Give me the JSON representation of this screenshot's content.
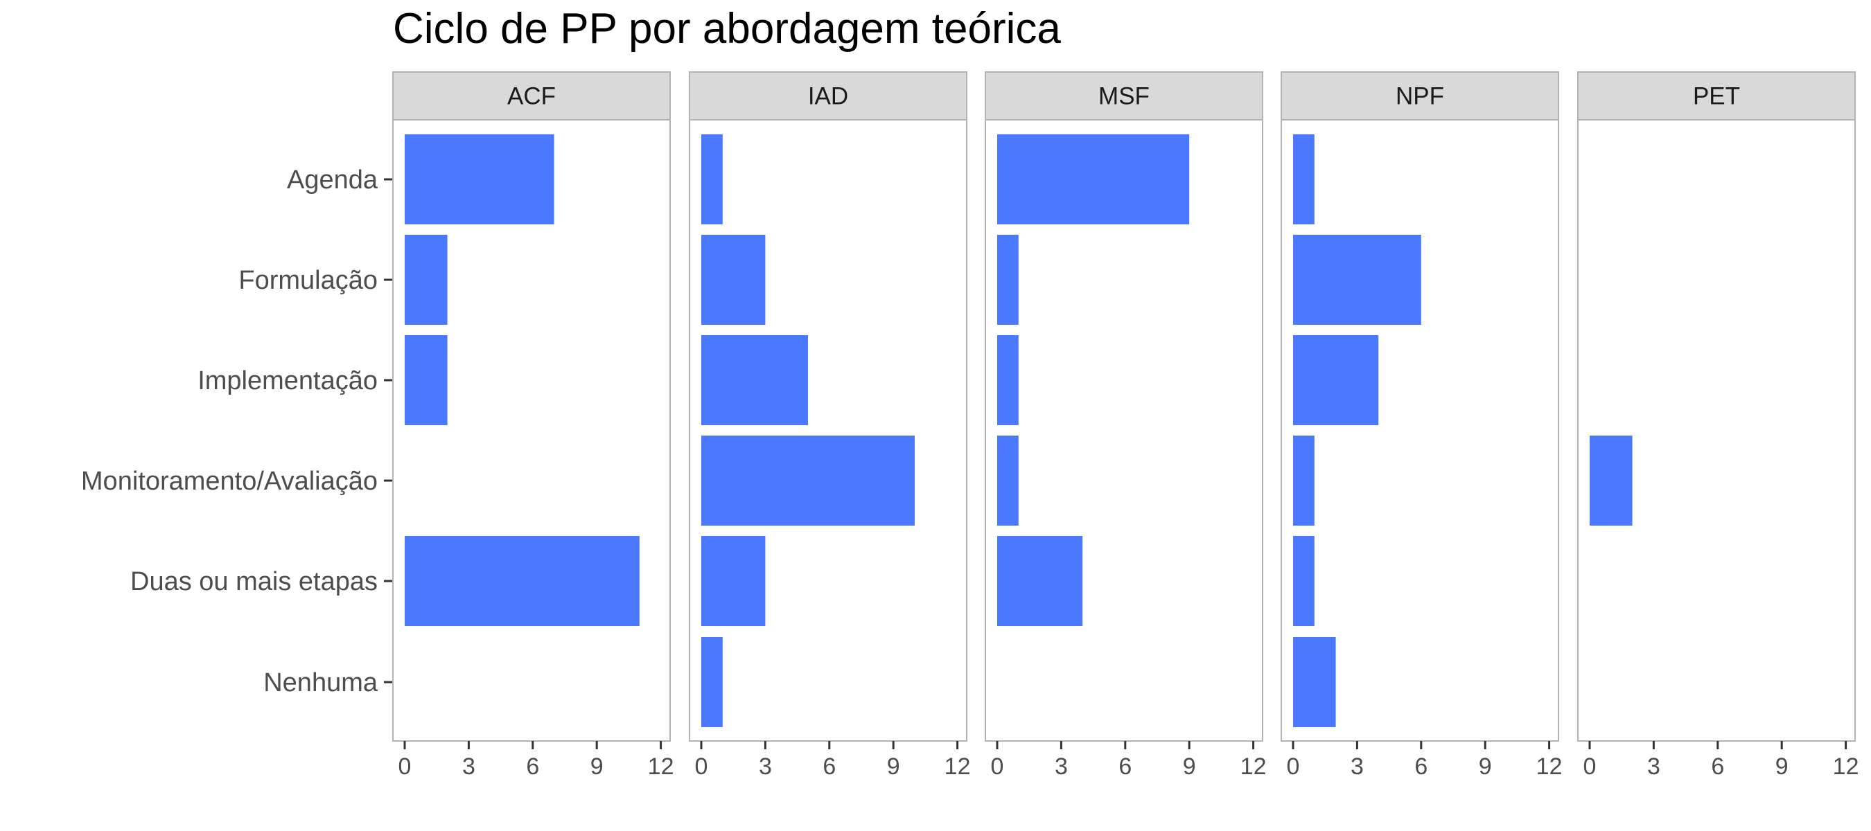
{
  "chart_data": {
    "type": "bar",
    "orientation": "horizontal",
    "faceted": true,
    "title": "Ciclo de PP por abordagem teórica",
    "xlabel": "",
    "ylabel": "",
    "xlim": [
      0,
      12
    ],
    "x_ticks": [
      "0",
      "3",
      "6",
      "9",
      "12"
    ],
    "categories": [
      "Agenda",
      "Formulação",
      "Implementação",
      "Monitoramento/Avaliação",
      "Duas ou mais etapas",
      "Nenhuma"
    ],
    "bar_color": "#4a78ff",
    "grid": false,
    "facets": [
      {
        "name": "ACF",
        "values": [
          7,
          2,
          2,
          0,
          11,
          0
        ]
      },
      {
        "name": "IAD",
        "values": [
          1,
          3,
          5,
          10,
          3,
          1
        ]
      },
      {
        "name": "MSF",
        "values": [
          9,
          1,
          1,
          1,
          4,
          0
        ]
      },
      {
        "name": "NPF",
        "values": [
          1,
          6,
          4,
          1,
          1,
          2
        ]
      },
      {
        "name": "PET",
        "values": [
          0,
          0,
          0,
          2,
          0,
          0
        ]
      }
    ]
  }
}
